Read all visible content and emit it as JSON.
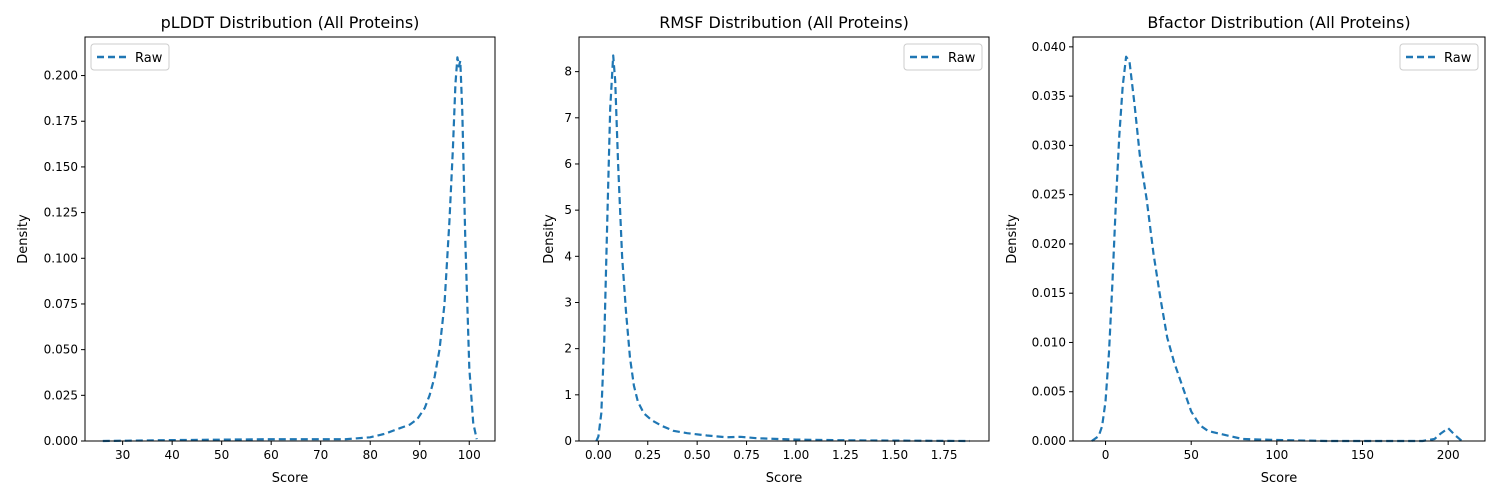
{
  "figure": {
    "panels": [
      {
        "title": "pLDDT Distribution (All Proteins)",
        "xlabel": "Score",
        "ylabel": "Density",
        "legend_label": "Raw",
        "legend_loc": "upper left"
      },
      {
        "title": "RMSF Distribution (All Proteins)",
        "xlabel": "Score",
        "ylabel": "Density",
        "legend_label": "Raw",
        "legend_loc": "upper right"
      },
      {
        "title": "Bfactor Distribution (All Proteins)",
        "xlabel": "Score",
        "ylabel": "Density",
        "legend_label": "Raw",
        "legend_loc": "upper right"
      }
    ]
  },
  "chart_data": [
    {
      "type": "line",
      "title": "pLDDT Distribution (All Proteins)",
      "xlabel": "Score",
      "ylabel": "Density",
      "line_color": "#1f77b4",
      "line_style": "dashed",
      "grid": false,
      "legend": "upper-left",
      "xlim": [
        22.4,
        105.2
      ],
      "ylim": [
        0,
        0.2211
      ],
      "xticks": [
        30,
        40,
        50,
        60,
        70,
        80,
        90,
        100
      ],
      "xtick_labels": [
        "30",
        "40",
        "50",
        "60",
        "70",
        "80",
        "90",
        "100"
      ],
      "yticks": [
        0,
        0.025,
        0.05,
        0.075,
        0.1,
        0.125,
        0.15,
        0.175,
        0.2
      ],
      "ytick_labels": [
        "0.000",
        "0.025",
        "0.050",
        "0.075",
        "0.100",
        "0.125",
        "0.150",
        "0.175",
        "0.200"
      ],
      "series": [
        {
          "name": "Raw",
          "x": [
            26,
            40,
            60,
            75,
            80,
            83,
            86,
            88,
            89.5,
            91,
            92,
            93,
            94,
            95,
            96,
            96.7,
            97.2,
            97.6,
            97.9,
            98.2,
            98.6,
            99.2,
            100,
            100.8,
            101.5
          ],
          "y": [
            0,
            0.0005,
            0.001,
            0.001,
            0.002,
            0.004,
            0.007,
            0.009,
            0.012,
            0.018,
            0.025,
            0.035,
            0.05,
            0.075,
            0.12,
            0.16,
            0.195,
            0.21,
            0.205,
            0.208,
            0.18,
            0.11,
            0.04,
            0.01,
            0.001
          ]
        }
      ]
    },
    {
      "type": "line",
      "title": "RMSF Distribution (All Proteins)",
      "xlabel": "Score",
      "ylabel": "Density",
      "line_color": "#1f77b4",
      "line_style": "dashed",
      "grid": false,
      "legend": "upper-right",
      "xlim": [
        -0.098,
        1.977
      ],
      "ylim": [
        0,
        8.75
      ],
      "xticks": [
        0,
        0.25,
        0.5,
        0.75,
        1.0,
        1.25,
        1.5,
        1.75
      ],
      "xtick_labels": [
        "0.00",
        "0.25",
        "0.50",
        "0.75",
        "1.00",
        "1.25",
        "1.50",
        "1.75"
      ],
      "yticks": [
        0,
        1,
        2,
        3,
        4,
        5,
        6,
        7,
        8
      ],
      "ytick_labels": [
        "0",
        "1",
        "2",
        "3",
        "4",
        "5",
        "6",
        "7",
        "8"
      ],
      "series": [
        {
          "name": "Raw",
          "x": [
            -0.01,
            0.0,
            0.015,
            0.03,
            0.045,
            0.06,
            0.075,
            0.085,
            0.1,
            0.12,
            0.14,
            0.16,
            0.18,
            0.2,
            0.23,
            0.27,
            0.32,
            0.38,
            0.45,
            0.55,
            0.65,
            0.72,
            0.8,
            1.0,
            1.25,
            1.5,
            1.88
          ],
          "y": [
            0,
            0.1,
            0.6,
            2.2,
            4.8,
            7.2,
            8.35,
            7.8,
            6.0,
            4.0,
            2.8,
            1.8,
            1.2,
            0.85,
            0.6,
            0.45,
            0.33,
            0.22,
            0.17,
            0.12,
            0.08,
            0.09,
            0.06,
            0.03,
            0.015,
            0.008,
            0.0
          ]
        }
      ]
    },
    {
      "type": "line",
      "title": "Bfactor Distribution (All Proteins)",
      "xlabel": "Score",
      "ylabel": "Density",
      "line_color": "#1f77b4",
      "line_style": "dashed",
      "grid": false,
      "legend": "upper-right",
      "xlim": [
        -19,
        221.5
      ],
      "ylim": [
        0,
        0.041
      ],
      "xticks": [
        0,
        50,
        100,
        150,
        200
      ],
      "xtick_labels": [
        "0",
        "50",
        "100",
        "150",
        "200"
      ],
      "yticks": [
        0,
        0.005,
        0.01,
        0.015,
        0.02,
        0.025,
        0.03,
        0.035,
        0.04
      ],
      "ytick_labels": [
        "0.000",
        "0.005",
        "0.010",
        "0.015",
        "0.020",
        "0.025",
        "0.030",
        "0.035",
        "0.040"
      ],
      "series": [
        {
          "name": "Raw",
          "x": [
            -8,
            -4,
            -2,
            0,
            2,
            4,
            6,
            8,
            10,
            12,
            14,
            17,
            20,
            24,
            28,
            32,
            36,
            40,
            45,
            50,
            55,
            60,
            70,
            80,
            100,
            130,
            160,
            185,
            192,
            196,
            200,
            204,
            208
          ],
          "y": [
            0,
            0.0005,
            0.0015,
            0.004,
            0.009,
            0.016,
            0.024,
            0.031,
            0.036,
            0.039,
            0.0385,
            0.034,
            0.029,
            0.0245,
            0.019,
            0.0145,
            0.0105,
            0.008,
            0.0055,
            0.003,
            0.0016,
            0.001,
            0.0006,
            0.0002,
            0.0001,
            0.0,
            0.0,
            0.0,
            0.0002,
            0.0008,
            0.0013,
            0.0006,
            0.0
          ]
        }
      ]
    }
  ]
}
